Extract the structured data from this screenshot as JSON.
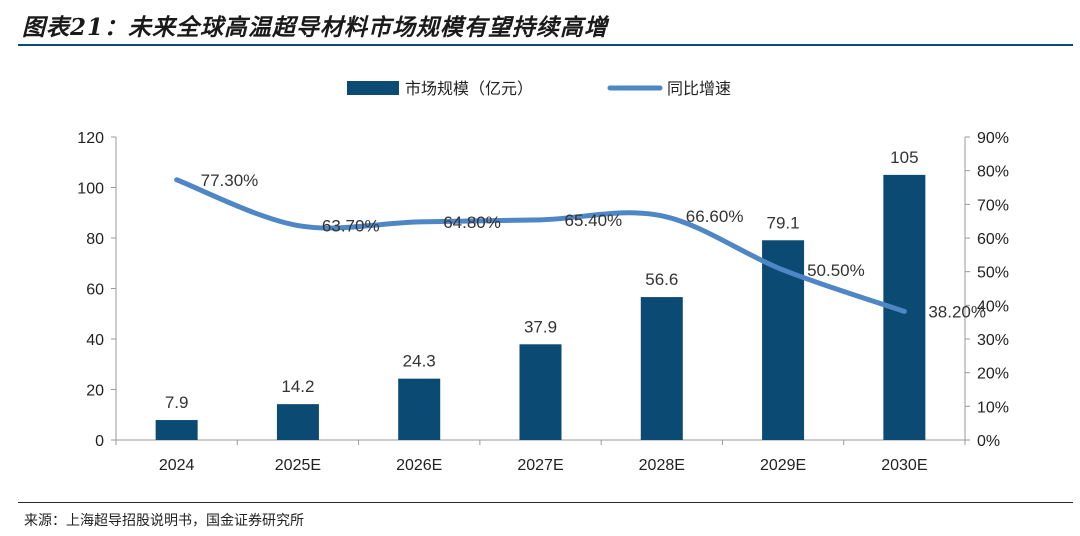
{
  "figure": {
    "title": "图表21：未来全球高温超导材料市场规模有望持续高增",
    "source": "来源：上海超导招股说明书，国金证券研究所"
  },
  "chart_data": {
    "type": "bar",
    "categories": [
      "2024",
      "2025E",
      "2026E",
      "2027E",
      "2028E",
      "2029E",
      "2030E"
    ],
    "series": [
      {
        "name": "市场规模（亿元）",
        "type": "bar",
        "axis": "left",
        "color": "#0b4a72",
        "values": [
          7.9,
          14.2,
          24.3,
          37.9,
          56.6,
          79.1,
          105
        ],
        "labels": [
          "7.9",
          "14.2",
          "24.3",
          "37.9",
          "56.6",
          "79.1",
          "105"
        ]
      },
      {
        "name": "同比增速",
        "type": "line",
        "axis": "right",
        "color": "#4f86c6",
        "values": [
          77.3,
          63.7,
          64.8,
          65.4,
          66.6,
          50.5,
          38.2
        ],
        "labels": [
          "77.30%",
          "63.70%",
          "64.80%",
          "65.40%",
          "66.60%",
          "50.50%",
          "38.20%"
        ]
      }
    ],
    "left_axis": {
      "ylim": [
        0,
        120
      ],
      "ticks": [
        0,
        20,
        40,
        60,
        80,
        100,
        120
      ],
      "tick_labels": [
        "0",
        "20",
        "40",
        "60",
        "80",
        "100",
        "120"
      ]
    },
    "right_axis": {
      "ylim": [
        0,
        90
      ],
      "ticks": [
        0,
        10,
        20,
        30,
        40,
        50,
        60,
        70,
        80,
        90
      ],
      "tick_labels": [
        "0%",
        "10%",
        "20%",
        "30%",
        "40%",
        "50%",
        "60%",
        "70%",
        "80%",
        "90%"
      ]
    },
    "legend_position": "top-center",
    "grid": false
  }
}
